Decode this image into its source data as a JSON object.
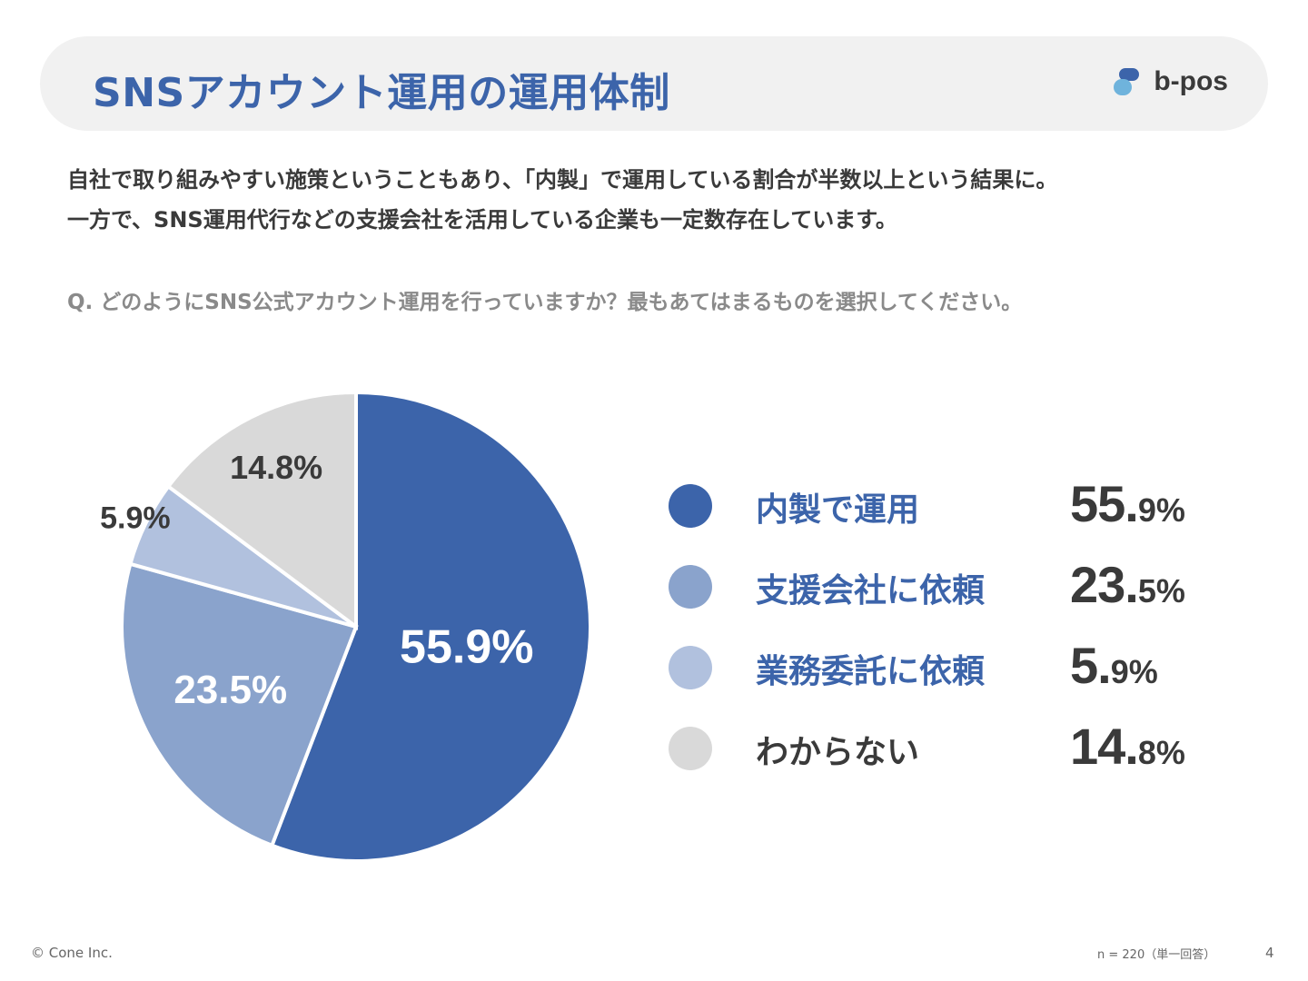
{
  "header": {
    "title": "SNSアカウント運用の運用体制",
    "logo_text": "b-pos"
  },
  "lead": {
    "line1": "自社で取り組みやすい施策ということもあり、「内製」で運用している割合が半数以上という結果に。",
    "line2": "一方で、SNS運用代行などの支援会社を活用している企業も一定数存在しています。"
  },
  "question": "Q. どのようにSNS公式アカウント運用を行っていますか？最もあてはまるものを選択してください。",
  "chart_data": {
    "type": "pie",
    "title": "",
    "slices": [
      {
        "label": "内製で運用",
        "value": 55.9,
        "display": "55.9%",
        "int": "55.",
        "dec": "9%",
        "color": "#3c64aa",
        "label_color": "#ffffff",
        "legend_color": "#3c64aa"
      },
      {
        "label": "支援会社に依頼",
        "value": 23.5,
        "display": "23.5%",
        "int": "23.",
        "dec": "5%",
        "color": "#8aa3cc",
        "label_color": "#ffffff",
        "legend_color": "#3c64aa"
      },
      {
        "label": "業務委託に依頼",
        "value": 5.9,
        "display": "5.9%",
        "int": "5.",
        "dec": "9%",
        "color": "#b1c1de",
        "label_color": "#3a3a3a",
        "legend_color": "#3c64aa"
      },
      {
        "label": "わからない",
        "value": 14.8,
        "display": "14.8%",
        "int": "14.",
        "dec": "8%",
        "color": "#d9d9d9",
        "label_color": "#3a3a3a",
        "legend_color": "#3a3a3a"
      }
    ]
  },
  "footer": {
    "copyright": "© Cone Inc.",
    "sample": "n = 220（単一回答）",
    "page": "4"
  }
}
